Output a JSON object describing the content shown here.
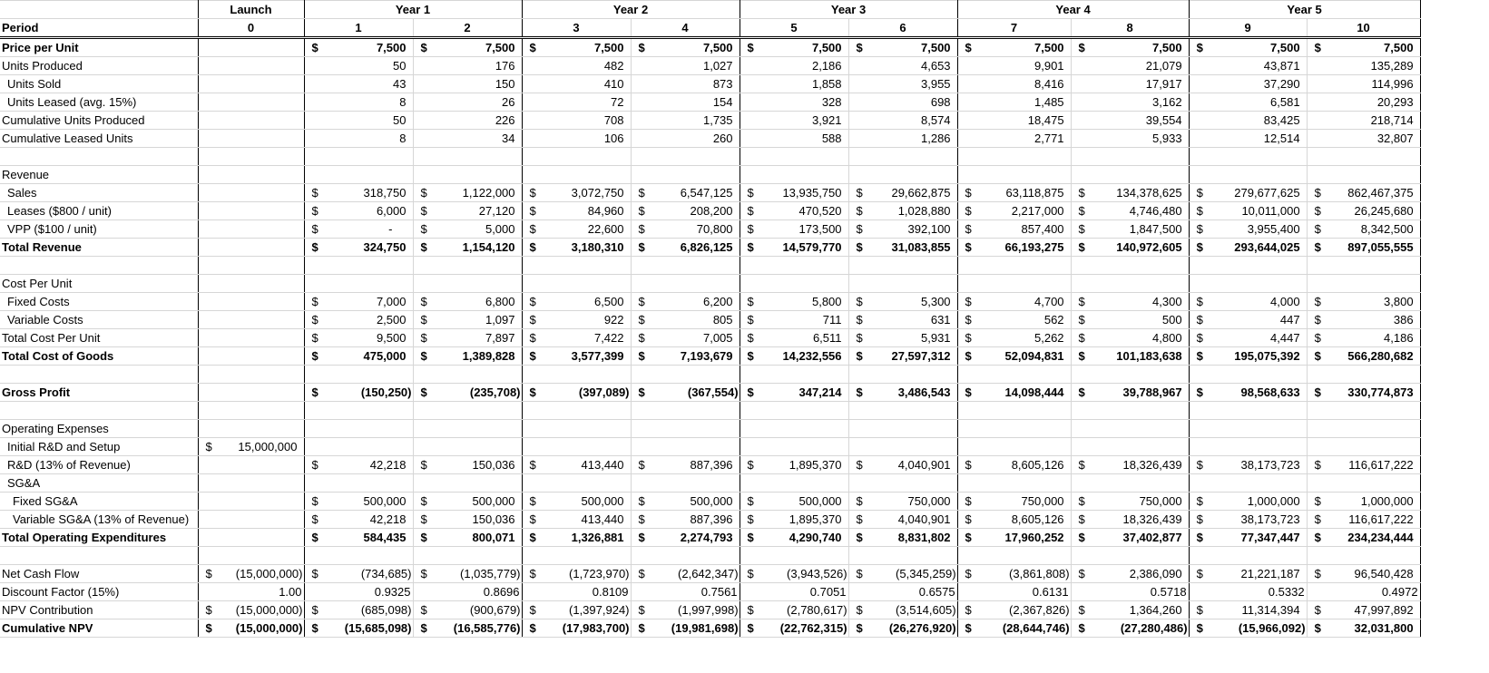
{
  "currency_symbol": "$",
  "header": {
    "year_row": {
      "launch": "Launch",
      "years": [
        "Year 1",
        "Year 2",
        "Year 3",
        "Year 4",
        "Year 5"
      ]
    },
    "period_row": {
      "label": "Period",
      "launch": "0",
      "periods": [
        "1",
        "2",
        "3",
        "4",
        "5",
        "6",
        "7",
        "8",
        "9",
        "10"
      ]
    }
  },
  "rows": [
    {
      "label": "Price per Unit",
      "currency": true,
      "values": [
        "7,500",
        "7,500",
        "7,500",
        "7,500",
        "7,500",
        "7,500",
        "7,500",
        "7,500",
        "7,500",
        "7,500"
      ]
    },
    {
      "label": "Units Produced",
      "values": [
        "50",
        "176",
        "482",
        "1,027",
        "2,186",
        "4,653",
        "9,901",
        "21,079",
        "43,871",
        "135,289"
      ]
    },
    {
      "label": "Units Sold",
      "values": [
        "43",
        "150",
        "410",
        "873",
        "1,858",
        "3,955",
        "8,416",
        "17,917",
        "37,290",
        "114,996"
      ]
    },
    {
      "label": "Units Leased (avg. 15%)",
      "values": [
        "8",
        "26",
        "72",
        "154",
        "328",
        "698",
        "1,485",
        "3,162",
        "6,581",
        "20,293"
      ]
    },
    {
      "label": "Cumulative Units Produced",
      "values": [
        "50",
        "226",
        "708",
        "1,735",
        "3,921",
        "8,574",
        "18,475",
        "39,554",
        "83,425",
        "218,714"
      ]
    },
    {
      "label": "Cumulative Leased Units",
      "values": [
        "8",
        "34",
        "106",
        "260",
        "588",
        "1,286",
        "2,771",
        "5,933",
        "12,514",
        "32,807"
      ]
    },
    {
      "label": ""
    },
    {
      "label": "Revenue"
    },
    {
      "label": "Sales",
      "currency": true,
      "values": [
        "318,750",
        "1,122,000",
        "3,072,750",
        "6,547,125",
        "13,935,750",
        "29,662,875",
        "63,118,875",
        "134,378,625",
        "279,677,625",
        "862,467,375"
      ]
    },
    {
      "label": "Leases ($800 / unit)",
      "currency": true,
      "values": [
        "6,000",
        "27,120",
        "84,960",
        "208,200",
        "470,520",
        "1,028,880",
        "2,217,000",
        "4,746,480",
        "10,011,000",
        "26,245,680"
      ]
    },
    {
      "label": "VPP ($100 / unit)",
      "currency": true,
      "values": [
        "-",
        "5,000",
        "22,600",
        "70,800",
        "173,500",
        "392,100",
        "857,400",
        "1,847,500",
        "3,955,400",
        "8,342,500"
      ]
    },
    {
      "label": "Total Revenue",
      "currency": true,
      "values": [
        "324,750",
        "1,154,120",
        "3,180,310",
        "6,826,125",
        "14,579,770",
        "31,083,855",
        "66,193,275",
        "140,972,605",
        "293,644,025",
        "897,055,555"
      ]
    },
    {
      "label": ""
    },
    {
      "label": "Cost Per Unit"
    },
    {
      "label": "Fixed Costs",
      "currency": true,
      "values": [
        "7,000",
        "6,800",
        "6,500",
        "6,200",
        "5,800",
        "5,300",
        "4,700",
        "4,300",
        "4,000",
        "3,800"
      ]
    },
    {
      "label": "Variable Costs",
      "currency": true,
      "values": [
        "2,500",
        "1,097",
        "922",
        "805",
        "711",
        "631",
        "562",
        "500",
        "447",
        "386"
      ]
    },
    {
      "label": "Total Cost Per Unit",
      "currency": true,
      "values": [
        "9,500",
        "7,897",
        "7,422",
        "7,005",
        "6,511",
        "5,931",
        "5,262",
        "4,800",
        "4,447",
        "4,186"
      ]
    },
    {
      "label": "Total Cost of Goods",
      "currency": true,
      "values": [
        "475,000",
        "1,389,828",
        "3,577,399",
        "7,193,679",
        "14,232,556",
        "27,597,312",
        "52,094,831",
        "101,183,638",
        "195,075,392",
        "566,280,682"
      ]
    },
    {
      "label": ""
    },
    {
      "label": "Gross Profit",
      "currency": true,
      "values": [
        "(150,250)",
        "(235,708)",
        "(397,089)",
        "(367,554)",
        "347,214",
        "3,486,543",
        "14,098,444",
        "39,788,967",
        "98,568,633",
        "330,774,873"
      ]
    },
    {
      "label": ""
    },
    {
      "label": "Operating Expenses"
    },
    {
      "label": "Initial R&D and Setup",
      "currency": true,
      "launch": "15,000,000"
    },
    {
      "label": "R&D (13% of Revenue)",
      "currency": true,
      "values": [
        "42,218",
        "150,036",
        "413,440",
        "887,396",
        "1,895,370",
        "4,040,901",
        "8,605,126",
        "18,326,439",
        "38,173,723",
        "116,617,222"
      ]
    },
    {
      "label": "SG&A"
    },
    {
      "label": "Fixed SG&A",
      "currency": true,
      "values": [
        "500,000",
        "500,000",
        "500,000",
        "500,000",
        "500,000",
        "750,000",
        "750,000",
        "750,000",
        "1,000,000",
        "1,000,000"
      ]
    },
    {
      "label": "Variable SG&A (13% of Revenue)",
      "currency": true,
      "values": [
        "42,218",
        "150,036",
        "413,440",
        "887,396",
        "1,895,370",
        "4,040,901",
        "8,605,126",
        "18,326,439",
        "38,173,723",
        "116,617,222"
      ]
    },
    {
      "label": "Total Operating Expenditures",
      "currency": true,
      "values": [
        "584,435",
        "800,071",
        "1,326,881",
        "2,274,793",
        "4,290,740",
        "8,831,802",
        "17,960,252",
        "37,402,877",
        "77,347,447",
        "234,234,444"
      ]
    },
    {
      "label": ""
    },
    {
      "label": "Net Cash Flow",
      "currency": true,
      "launch": "(15,000,000)",
      "values": [
        "(734,685)",
        "(1,035,779)",
        "(1,723,970)",
        "(2,642,347)",
        "(3,943,526)",
        "(5,345,259)",
        "(3,861,808)",
        "2,386,090",
        "21,221,187",
        "96,540,428"
      ]
    },
    {
      "label": "Discount Factor (15%)",
      "launch": "1.00",
      "values": [
        "0.9325",
        "0.8696",
        "0.8109",
        "0.7561",
        "0.7051",
        "0.6575",
        "0.6131",
        "0.5718",
        "0.5332",
        "0.4972"
      ]
    },
    {
      "label": "NPV Contribution",
      "currency": true,
      "launch": "(15,000,000)",
      "values": [
        "(685,098)",
        "(900,679)",
        "(1,397,924)",
        "(1,997,998)",
        "(2,780,617)",
        "(3,514,605)",
        "(2,367,826)",
        "1,364,260",
        "11,314,394",
        "47,997,892"
      ]
    },
    {
      "label": "Cumulative NPV",
      "currency": true,
      "launch": "(15,000,000)",
      "values": [
        "(15,685,098)",
        "(16,585,776)",
        "(17,983,700)",
        "(19,981,698)",
        "(22,762,315)",
        "(26,276,920)",
        "(28,644,746)",
        "(27,280,486)",
        "(15,966,092)",
        "32,031,800"
      ]
    }
  ]
}
